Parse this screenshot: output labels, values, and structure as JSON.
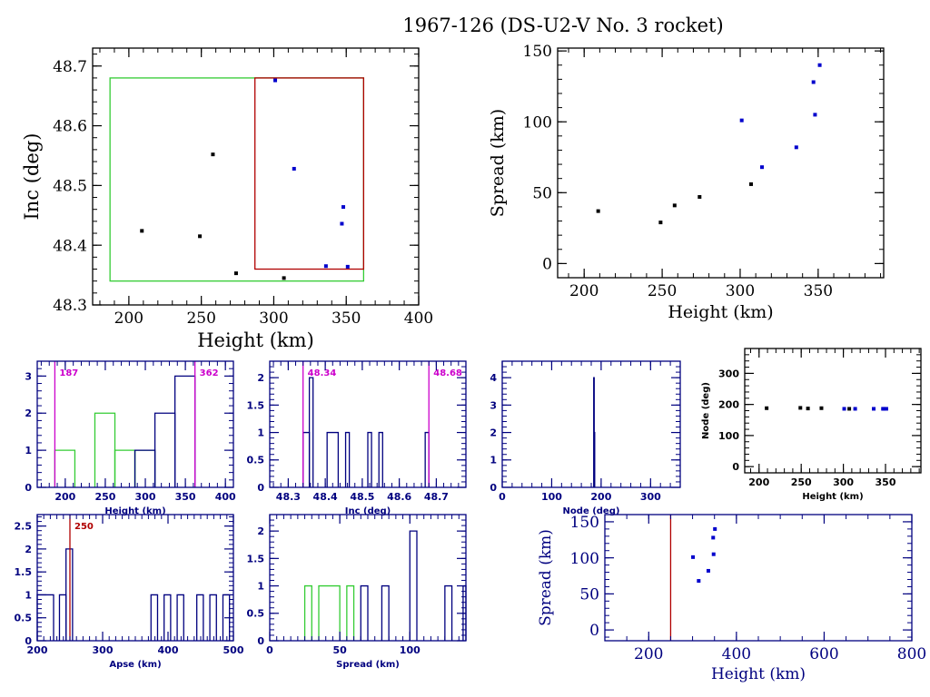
{
  "title": "1967-126 (DS-U2-V No. 3 rocket)",
  "colors": {
    "black": "#000000",
    "navy": "#00007f",
    "blue": "#0000cc",
    "green": "#33cc33",
    "red": "#b00000",
    "magenta": "#cc00cc"
  },
  "chart_data": [
    {
      "id": "inc-vs-height",
      "type": "scatter",
      "xlabel": "Height (km)",
      "ylabel": "Inc (deg)",
      "xlim": [
        175,
        400
      ],
      "ylim": [
        48.3,
        48.73
      ],
      "xticks": [
        200,
        250,
        300,
        350,
        400
      ],
      "yticks": [
        48.3,
        48.4,
        48.5,
        48.6,
        48.7
      ],
      "boxes": [
        {
          "name": "green-box",
          "color": "green",
          "x": [
            187,
            362
          ],
          "y": [
            48.34,
            48.68
          ]
        },
        {
          "name": "red-box",
          "color": "red",
          "x": [
            287,
            362
          ],
          "y": [
            48.36,
            48.68
          ]
        }
      ],
      "series": [
        {
          "name": "black",
          "color": "black",
          "points": [
            [
              209,
              48.424
            ],
            [
              249,
              48.415
            ],
            [
              258,
              48.552
            ],
            [
              274,
              48.353
            ],
            [
              307,
              48.345
            ]
          ]
        },
        {
          "name": "blue",
          "color": "blue",
          "points": [
            [
              301,
              48.676
            ],
            [
              314,
              48.528
            ],
            [
              336,
              48.365
            ],
            [
              347,
              48.436
            ],
            [
              348,
              48.464
            ],
            [
              351,
              48.364
            ]
          ]
        }
      ]
    },
    {
      "id": "spread-vs-height",
      "type": "scatter",
      "xlabel": "Height (km)",
      "ylabel": "Spread (km)",
      "xlim": [
        183,
        392
      ],
      "ylim": [
        -10,
        152
      ],
      "xticks": [
        200,
        250,
        300,
        350
      ],
      "yticks": [
        0,
        50,
        100,
        150
      ],
      "series": [
        {
          "name": "black",
          "color": "black",
          "points": [
            [
              209,
              37
            ],
            [
              249,
              29
            ],
            [
              258,
              41
            ],
            [
              274,
              47
            ],
            [
              307,
              56
            ]
          ]
        },
        {
          "name": "blue",
          "color": "blue",
          "points": [
            [
              301,
              101
            ],
            [
              314,
              68
            ],
            [
              336,
              82
            ],
            [
              347,
              128
            ],
            [
              348,
              105
            ],
            [
              351,
              140
            ]
          ]
        }
      ]
    },
    {
      "id": "height-histogram",
      "type": "bar",
      "xlabel": "Height (km)",
      "ylabel": "",
      "xlim": [
        165,
        410
      ],
      "ylim": [
        0,
        3.4
      ],
      "xticks": [
        200,
        250,
        300,
        350,
        400
      ],
      "yticks": [
        0,
        1,
        2,
        3
      ],
      "markers": [
        {
          "value": 187,
          "label": "187",
          "color": "magenta"
        },
        {
          "value": 362,
          "label": "362",
          "color": "magenta"
        }
      ],
      "bins": [
        {
          "x0": 187,
          "x1": 212,
          "count": 1,
          "color": "green"
        },
        {
          "x0": 237,
          "x1": 262,
          "count": 2,
          "color": "green"
        },
        {
          "x0": 262,
          "x1": 287,
          "count": 1,
          "color": "green"
        },
        {
          "x0": 287,
          "x1": 312,
          "count": 1,
          "color": "green"
        },
        {
          "x0": 287,
          "x1": 312,
          "count": 1,
          "color": "navy"
        },
        {
          "x0": 312,
          "x1": 337,
          "count": 2,
          "color": "navy"
        },
        {
          "x0": 337,
          "x1": 362,
          "count": 3,
          "color": "navy"
        }
      ]
    },
    {
      "id": "inc-histogram",
      "type": "bar",
      "xlabel": "Inc (deg)",
      "ylabel": "",
      "xlim": [
        48.25,
        48.78
      ],
      "ylim": [
        0,
        2.3
      ],
      "xticks": [
        48.3,
        48.4,
        48.5,
        48.6,
        48.7
      ],
      "yticks": [
        0,
        0.5,
        1,
        1.5,
        2
      ],
      "markers": [
        {
          "value": 48.34,
          "label": "48.34",
          "color": "magenta"
        },
        {
          "value": 48.68,
          "label": "48.68",
          "color": "magenta"
        }
      ],
      "bins": [
        {
          "x0": 48.34,
          "x1": 48.357,
          "count": 1,
          "color": "navy"
        },
        {
          "x0": 48.357,
          "x1": 48.367,
          "count": 2,
          "color": "navy"
        },
        {
          "x0": 48.405,
          "x1": 48.435,
          "count": 1,
          "color": "navy"
        },
        {
          "x0": 48.455,
          "x1": 48.465,
          "count": 1,
          "color": "navy"
        },
        {
          "x0": 48.515,
          "x1": 48.525,
          "count": 1,
          "color": "navy"
        },
        {
          "x0": 48.545,
          "x1": 48.555,
          "count": 1,
          "color": "navy"
        },
        {
          "x0": 48.67,
          "x1": 48.68,
          "count": 1,
          "color": "navy"
        }
      ]
    },
    {
      "id": "node-histogram",
      "type": "bar",
      "xlabel": "Node (deg)",
      "ylabel": "",
      "xlim": [
        0,
        360
      ],
      "ylim": [
        0,
        4.6
      ],
      "xticks": [
        0,
        100,
        200,
        300
      ],
      "yticks": [
        0,
        1,
        2,
        3,
        4
      ],
      "bins": [
        {
          "x0": 185,
          "x1": 186,
          "count": 4,
          "color": "navy"
        },
        {
          "x0": 186,
          "x1": 187,
          "count": 2,
          "color": "navy"
        }
      ]
    },
    {
      "id": "node-vs-height",
      "type": "scatter",
      "xlabel": "Height (km)",
      "ylabel": "Node (deg)",
      "xlim": [
        183,
        392
      ],
      "ylim": [
        -20,
        380
      ],
      "xticks": [
        200,
        250,
        300,
        350
      ],
      "yticks": [
        0,
        100,
        200,
        300
      ],
      "series": [
        {
          "name": "black",
          "color": "black",
          "points": [
            [
              209,
              188
            ],
            [
              249,
              189
            ],
            [
              258,
              187
            ],
            [
              274,
              188
            ],
            [
              307,
              186
            ]
          ]
        },
        {
          "name": "blue",
          "color": "blue",
          "points": [
            [
              301,
              186
            ],
            [
              314,
              186
            ],
            [
              336,
              186
            ],
            [
              347,
              186
            ],
            [
              348,
              186
            ],
            [
              351,
              186
            ]
          ]
        }
      ]
    },
    {
      "id": "apse-histogram",
      "type": "bar",
      "xlabel": "Apse (km)",
      "ylabel": "",
      "xlim": [
        200,
        500
      ],
      "ylim": [
        0,
        2.75
      ],
      "xticks": [
        200,
        300,
        400,
        500
      ],
      "yticks": [
        0,
        0.5,
        1,
        1.5,
        2,
        2.5
      ],
      "markers": [
        {
          "value": 250,
          "label": "250",
          "color": "red"
        }
      ],
      "bins": [
        {
          "x0": 200,
          "x1": 225,
          "count": 1,
          "color": "navy"
        },
        {
          "x0": 234,
          "x1": 244,
          "count": 1,
          "color": "navy"
        },
        {
          "x0": 244,
          "x1": 254,
          "count": 2,
          "color": "navy"
        },
        {
          "x0": 374,
          "x1": 384,
          "count": 1,
          "color": "navy"
        },
        {
          "x0": 394,
          "x1": 404,
          "count": 1,
          "color": "navy"
        },
        {
          "x0": 414,
          "x1": 424,
          "count": 1,
          "color": "navy"
        },
        {
          "x0": 444,
          "x1": 454,
          "count": 1,
          "color": "navy"
        },
        {
          "x0": 464,
          "x1": 474,
          "count": 1,
          "color": "navy"
        },
        {
          "x0": 484,
          "x1": 494,
          "count": 1,
          "color": "navy"
        }
      ]
    },
    {
      "id": "spread-histogram",
      "type": "bar",
      "xlabel": "Spread (km)",
      "ylabel": "",
      "xlim": [
        0,
        140
      ],
      "ylim": [
        0,
        2.3
      ],
      "xticks": [
        0,
        50,
        100
      ],
      "yticks": [
        0,
        0.5,
        1,
        1.5,
        2
      ],
      "bins": [
        {
          "x0": 25,
          "x1": 30,
          "count": 1,
          "color": "green"
        },
        {
          "x0": 35,
          "x1": 50,
          "count": 1,
          "color": "green"
        },
        {
          "x0": 55,
          "x1": 60,
          "count": 1,
          "color": "green"
        },
        {
          "x0": 65,
          "x1": 70,
          "count": 1,
          "color": "navy"
        },
        {
          "x0": 80,
          "x1": 85,
          "count": 1,
          "color": "navy"
        },
        {
          "x0": 100,
          "x1": 105,
          "count": 2,
          "color": "navy"
        },
        {
          "x0": 125,
          "x1": 130,
          "count": 1,
          "color": "navy"
        },
        {
          "x0": 138,
          "x1": 140,
          "count": 1,
          "color": "navy"
        }
      ]
    },
    {
      "id": "spread-vs-height-wide",
      "type": "scatter",
      "xlabel": "Height (km)",
      "ylabel": "Spread (km)",
      "xlim": [
        100,
        800
      ],
      "ylim": [
        -15,
        160
      ],
      "xticks": [
        200,
        400,
        600,
        800
      ],
      "yticks": [
        0,
        50,
        100,
        150
      ],
      "markers": [
        {
          "value": 250,
          "color": "red"
        }
      ],
      "series": [
        {
          "name": "blue",
          "color": "blue",
          "points": [
            [
              301,
              101
            ],
            [
              314,
              68
            ],
            [
              336,
              82
            ],
            [
              347,
              128
            ],
            [
              348,
              105
            ],
            [
              351,
              140
            ]
          ]
        }
      ]
    }
  ]
}
